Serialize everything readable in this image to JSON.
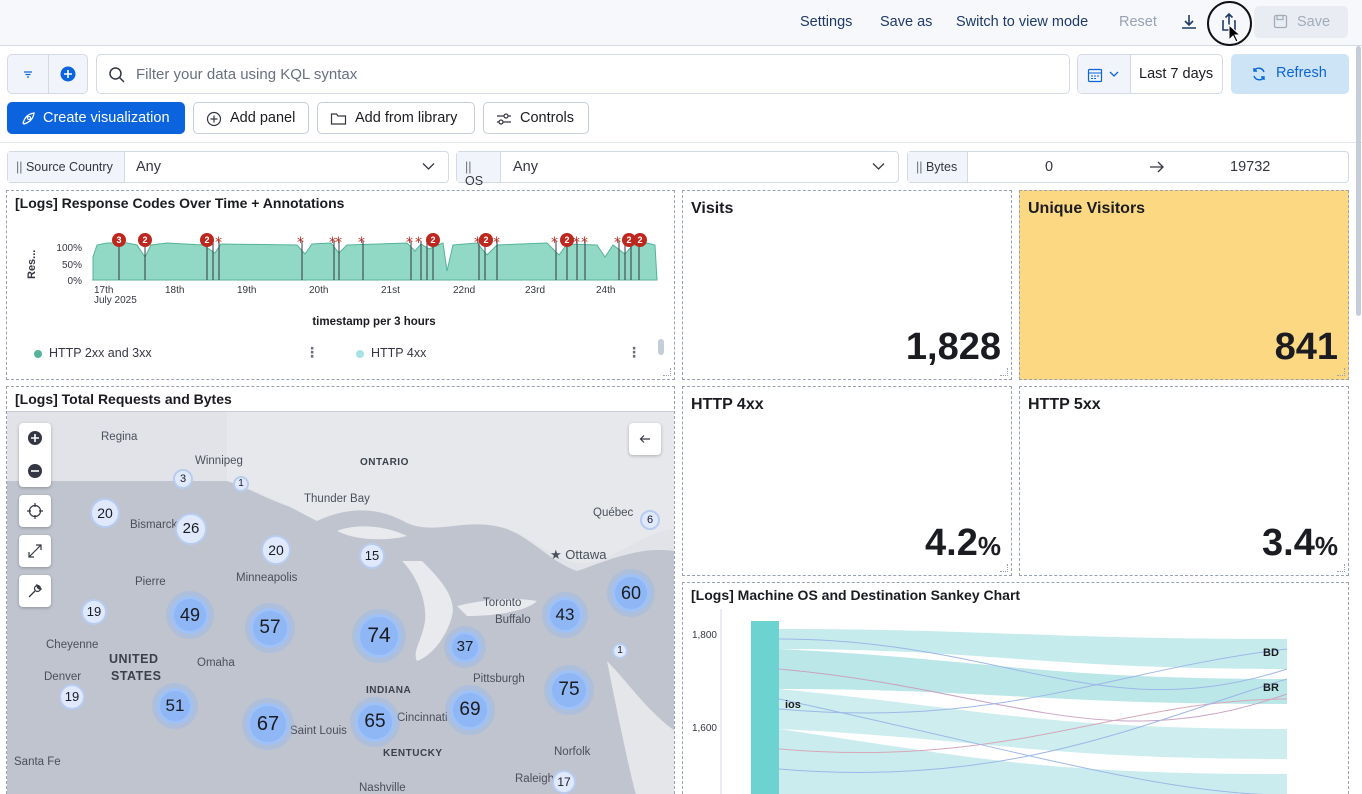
{
  "header": {
    "settings": "Settings",
    "save_as": "Save as",
    "switch_view": "Switch to view mode",
    "reset": "Reset",
    "save": "Save"
  },
  "query": {
    "placeholder": "Filter your data using KQL syntax",
    "date_range": "Last 7 days",
    "refresh": "Refresh"
  },
  "toolbar": {
    "create_visualization": "Create visualization",
    "add_panel": "Add panel",
    "add_from_library": "Add from library",
    "controls": "Controls"
  },
  "controls": {
    "source_country": {
      "label": "Source Country",
      "value": "Any"
    },
    "os": {
      "label": "OS",
      "value": "Any"
    },
    "bytes": {
      "label": "Bytes",
      "min": "0",
      "max": "19732"
    }
  },
  "panels": {
    "response_codes": {
      "title": "[Logs] Response Codes Over Time + Annotations",
      "ylabel": "Res...",
      "y_ticks": [
        "100%",
        "50%",
        "0%"
      ],
      "x_ticks": [
        "17th",
        "18th",
        "19th",
        "20th",
        "21st",
        "22nd",
        "23rd",
        "24th"
      ],
      "x_sub": "July 2025",
      "xlabel": "timestamp per 3 hours",
      "legend": [
        "HTTP 2xx and 3xx",
        "HTTP 4xx"
      ],
      "annotation_counts": [
        "3",
        "2",
        "2",
        "2",
        "2",
        "2",
        "2",
        "2"
      ]
    },
    "visits": {
      "title": "Visits",
      "value": "1,828"
    },
    "unique_visitors": {
      "title": "Unique Visitors",
      "value": "841"
    },
    "http4xx": {
      "title": "HTTP 4xx",
      "value": "4.2",
      "unit": "%"
    },
    "http5xx": {
      "title": "HTTP 5xx",
      "value": "3.4",
      "unit": "%"
    },
    "total_requests": {
      "title": "[Logs] Total Requests and Bytes"
    },
    "sankey": {
      "title": "[Logs] Machine OS and Destination Sankey Chart",
      "y_ticks": [
        "1,800",
        "1,600"
      ],
      "node_ios": "ios",
      "node_bd": "BD",
      "node_br": "BR"
    }
  },
  "map": {
    "places": [
      "Regina",
      "Winnipeg",
      "ONTARIO",
      "Thunder Bay",
      "Québec",
      "Ottawa",
      "Bismarck",
      "Pierre",
      "Minneapolis",
      "Toronto",
      "Buffalo",
      "Cheyenne",
      "UNITED",
      "STATES",
      "Omaha",
      "Pittsburgh",
      "Denver",
      "INDIANA",
      "Cincinnati",
      "Saint Louis",
      "KENTUCKY",
      "Norfolk",
      "Santa Fe",
      "Raleigh",
      "Nashville"
    ],
    "clusters": [
      "3",
      "1",
      "20",
      "26",
      "20",
      "15",
      "6",
      "49",
      "57",
      "74",
      "43",
      "60",
      "19",
      "37",
      "1",
      "75",
      "19",
      "51",
      "67",
      "65",
      "69",
      "17"
    ]
  },
  "colors": {
    "accent": "#0b64dd",
    "unique_visitors_bg": "#fcd883",
    "area_teal": "#54b399",
    "annotation_red": "#bd271e"
  }
}
